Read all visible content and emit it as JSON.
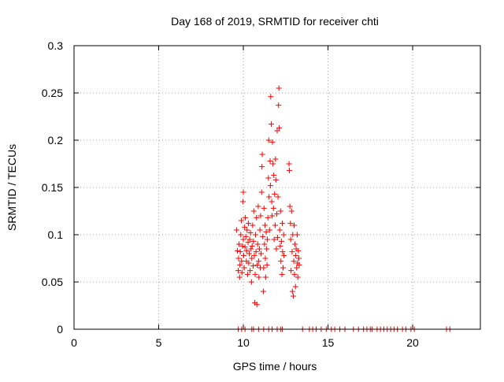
{
  "chart_data": {
    "type": "scatter",
    "title": "Day 168 of 2019, SRMTID for receiver chti",
    "xlabel": "GPS time / hours",
    "ylabel": "SRMTID / TECUs",
    "xlim": [
      0,
      24
    ],
    "ylim": [
      0,
      0.3
    ],
    "xticks": [
      0,
      5,
      10,
      15,
      20
    ],
    "xtick_labels": [
      "0",
      "5",
      "10",
      "15",
      "20"
    ],
    "yticks": [
      0,
      0.05,
      0.1,
      0.15,
      0.2,
      0.25,
      0.3
    ],
    "ytick_labels": [
      "0",
      "0.05",
      "0.1",
      "0.15",
      "0.2",
      "0.25",
      "0.3"
    ],
    "grid": true,
    "marker": "+",
    "series": [
      {
        "name": "SRMTID",
        "color": "#ff0000",
        "points": [
          [
            9.6,
            0.105
          ],
          [
            9.65,
            0.083
          ],
          [
            9.7,
            0.062
          ],
          [
            9.72,
            0.075
          ],
          [
            9.75,
            0.09
          ],
          [
            9.78,
            0.055
          ],
          [
            9.8,
            0.068
          ],
          [
            9.82,
            0.082
          ],
          [
            9.85,
            0.1
          ],
          [
            9.88,
            0.115
          ],
          [
            9.9,
            0.072
          ],
          [
            9.92,
            0.06
          ],
          [
            9.95,
            0.088
          ],
          [
            9.98,
            0.135
          ],
          [
            10.0,
            0.145
          ],
          [
            10.0,
            0.095
          ],
          [
            10.02,
            0.078
          ],
          [
            10.05,
            0.065
          ],
          [
            10.08,
            0.108
          ],
          [
            10.1,
            0.087
          ],
          [
            10.12,
            0.118
          ],
          [
            10.15,
            0.098
          ],
          [
            10.18,
            0.072
          ],
          [
            10.2,
            0.083
          ],
          [
            10.22,
            0.105
          ],
          [
            10.25,
            0.058
          ],
          [
            10.28,
            0.092
          ],
          [
            10.3,
            0.112
          ],
          [
            10.32,
            0.07
          ],
          [
            10.35,
            0.08
          ],
          [
            10.38,
            0.095
          ],
          [
            10.4,
            0.062
          ],
          [
            10.42,
            0.102
          ],
          [
            10.45,
            0.085
          ],
          [
            10.48,
            0.05
          ],
          [
            10.5,
            0.075
          ],
          [
            10.52,
            0.088
          ],
          [
            10.55,
            0.11
          ],
          [
            10.58,
            0.067
          ],
          [
            10.6,
            0.093
          ],
          [
            10.62,
            0.125
          ],
          [
            10.65,
            0.078
          ],
          [
            10.68,
            0.028
          ],
          [
            10.7,
            0.058
          ],
          [
            10.72,
            0.1
          ],
          [
            10.75,
            0.082
          ],
          [
            10.78,
            0.118
          ],
          [
            10.8,
            0.026
          ],
          [
            10.82,
            0.068
          ],
          [
            10.85,
            0.09
          ],
          [
            10.88,
            0.13
          ],
          [
            10.9,
            0.072
          ],
          [
            10.92,
            0.055
          ],
          [
            10.95,
            0.085
          ],
          [
            10.98,
            0.105
          ],
          [
            11.0,
            0.065
          ],
          [
            11.02,
            0.12
          ],
          [
            11.05,
            0.08
          ],
          [
            11.08,
            0.145
          ],
          [
            11.1,
            0.172
          ],
          [
            11.12,
            0.185
          ],
          [
            11.15,
            0.098
          ],
          [
            11.18,
            0.04
          ],
          [
            11.2,
            0.065
          ],
          [
            11.22,
            0.128
          ],
          [
            11.25,
            0.09
          ],
          [
            11.28,
            0.11
          ],
          [
            11.3,
            0.075
          ],
          [
            11.32,
            0.055
          ],
          [
            11.35,
            0.103
          ],
          [
            11.38,
            0.085
          ],
          [
            11.4,
            0.068
          ],
          [
            11.42,
            0.095
          ],
          [
            11.45,
            0.118
          ],
          [
            11.48,
            0.16
          ],
          [
            11.5,
            0.2
          ],
          [
            11.52,
            0.14
          ],
          [
            11.55,
            0.105
          ],
          [
            11.58,
            0.178
          ],
          [
            11.6,
            0.152
          ],
          [
            11.62,
            0.246
          ],
          [
            11.65,
            0.217
          ],
          [
            11.68,
            0.135
          ],
          [
            11.7,
            0.12
          ],
          [
            11.72,
            0.198
          ],
          [
            11.75,
            0.175
          ],
          [
            11.78,
            0.128
          ],
          [
            11.8,
            0.163
          ],
          [
            11.82,
            0.095
          ],
          [
            11.85,
            0.143
          ],
          [
            11.88,
            0.11
          ],
          [
            11.9,
            0.18
          ],
          [
            11.92,
            0.158
          ],
          [
            11.95,
            0.085
          ],
          [
            11.98,
            0.122
          ],
          [
            12.0,
            0.21
          ],
          [
            12.02,
            0.097
          ],
          [
            12.05,
            0.14
          ],
          [
            12.08,
            0.237
          ],
          [
            12.1,
            0.255
          ],
          [
            12.12,
            0.213
          ],
          [
            12.15,
            0.105
          ],
          [
            12.18,
            0.088
          ],
          [
            12.2,
            0.125
          ],
          [
            12.22,
            0.072
          ],
          [
            12.25,
            0.093
          ],
          [
            12.28,
            0.058
          ],
          [
            12.3,
            0.112
          ],
          [
            12.32,
            0.082
          ],
          [
            12.35,
            0.065
          ],
          [
            12.38,
            0.1
          ],
          [
            12.4,
            0.078
          ],
          [
            12.7,
            0.175
          ],
          [
            12.72,
            0.168
          ],
          [
            12.75,
            0.13
          ],
          [
            12.78,
            0.112
          ],
          [
            12.8,
            0.095
          ],
          [
            12.82,
            0.062
          ],
          [
            12.85,
            0.125
          ],
          [
            12.88,
            0.082
          ],
          [
            12.9,
            0.04
          ],
          [
            12.92,
            0.1
          ],
          [
            12.95,
            0.035
          ],
          [
            12.98,
            0.072
          ],
          [
            13.0,
            0.11
          ],
          [
            13.02,
            0.058
          ],
          [
            13.05,
            0.09
          ],
          [
            13.08,
            0.045
          ],
          [
            13.1,
            0.078
          ],
          [
            13.12,
            0.085
          ],
          [
            13.15,
            0.065
          ],
          [
            13.18,
            0.1
          ],
          [
            13.2,
            0.07
          ],
          [
            13.22,
            0.055
          ],
          [
            13.25,
            0.083
          ],
          [
            13.28,
            0.075
          ],
          [
            13.3,
            0.068
          ],
          [
            9.7,
            0.0
          ],
          [
            9.9,
            0.0
          ],
          [
            10.1,
            0.0
          ],
          [
            10.5,
            0.0
          ],
          [
            10.6,
            0.0
          ],
          [
            10.9,
            0.0
          ],
          [
            11.2,
            0.0
          ],
          [
            11.5,
            0.0
          ],
          [
            11.7,
            0.0
          ],
          [
            12.0,
            0.0
          ],
          [
            12.2,
            0.0
          ],
          [
            12.3,
            0.0
          ],
          [
            13.5,
            0.0
          ],
          [
            13.9,
            0.0
          ],
          [
            14.1,
            0.0
          ],
          [
            14.3,
            0.0
          ],
          [
            14.6,
            0.0
          ],
          [
            14.9,
            0.0
          ],
          [
            15.2,
            0.0
          ],
          [
            15.4,
            0.0
          ],
          [
            15.7,
            0.0
          ],
          [
            16.0,
            0.0
          ],
          [
            16.5,
            0.0
          ],
          [
            16.8,
            0.0
          ],
          [
            17.1,
            0.0
          ],
          [
            17.3,
            0.0
          ],
          [
            17.5,
            0.0
          ],
          [
            17.6,
            0.0
          ],
          [
            17.9,
            0.0
          ],
          [
            18.1,
            0.0
          ],
          [
            18.3,
            0.0
          ],
          [
            18.5,
            0.0
          ],
          [
            18.7,
            0.0
          ],
          [
            18.9,
            0.0
          ],
          [
            19.1,
            0.0
          ],
          [
            19.4,
            0.0
          ],
          [
            19.6,
            0.0
          ],
          [
            19.9,
            0.0
          ],
          [
            20.1,
            0.0
          ],
          [
            22.0,
            0.0
          ],
          [
            22.2,
            0.0
          ]
        ]
      }
    ]
  }
}
